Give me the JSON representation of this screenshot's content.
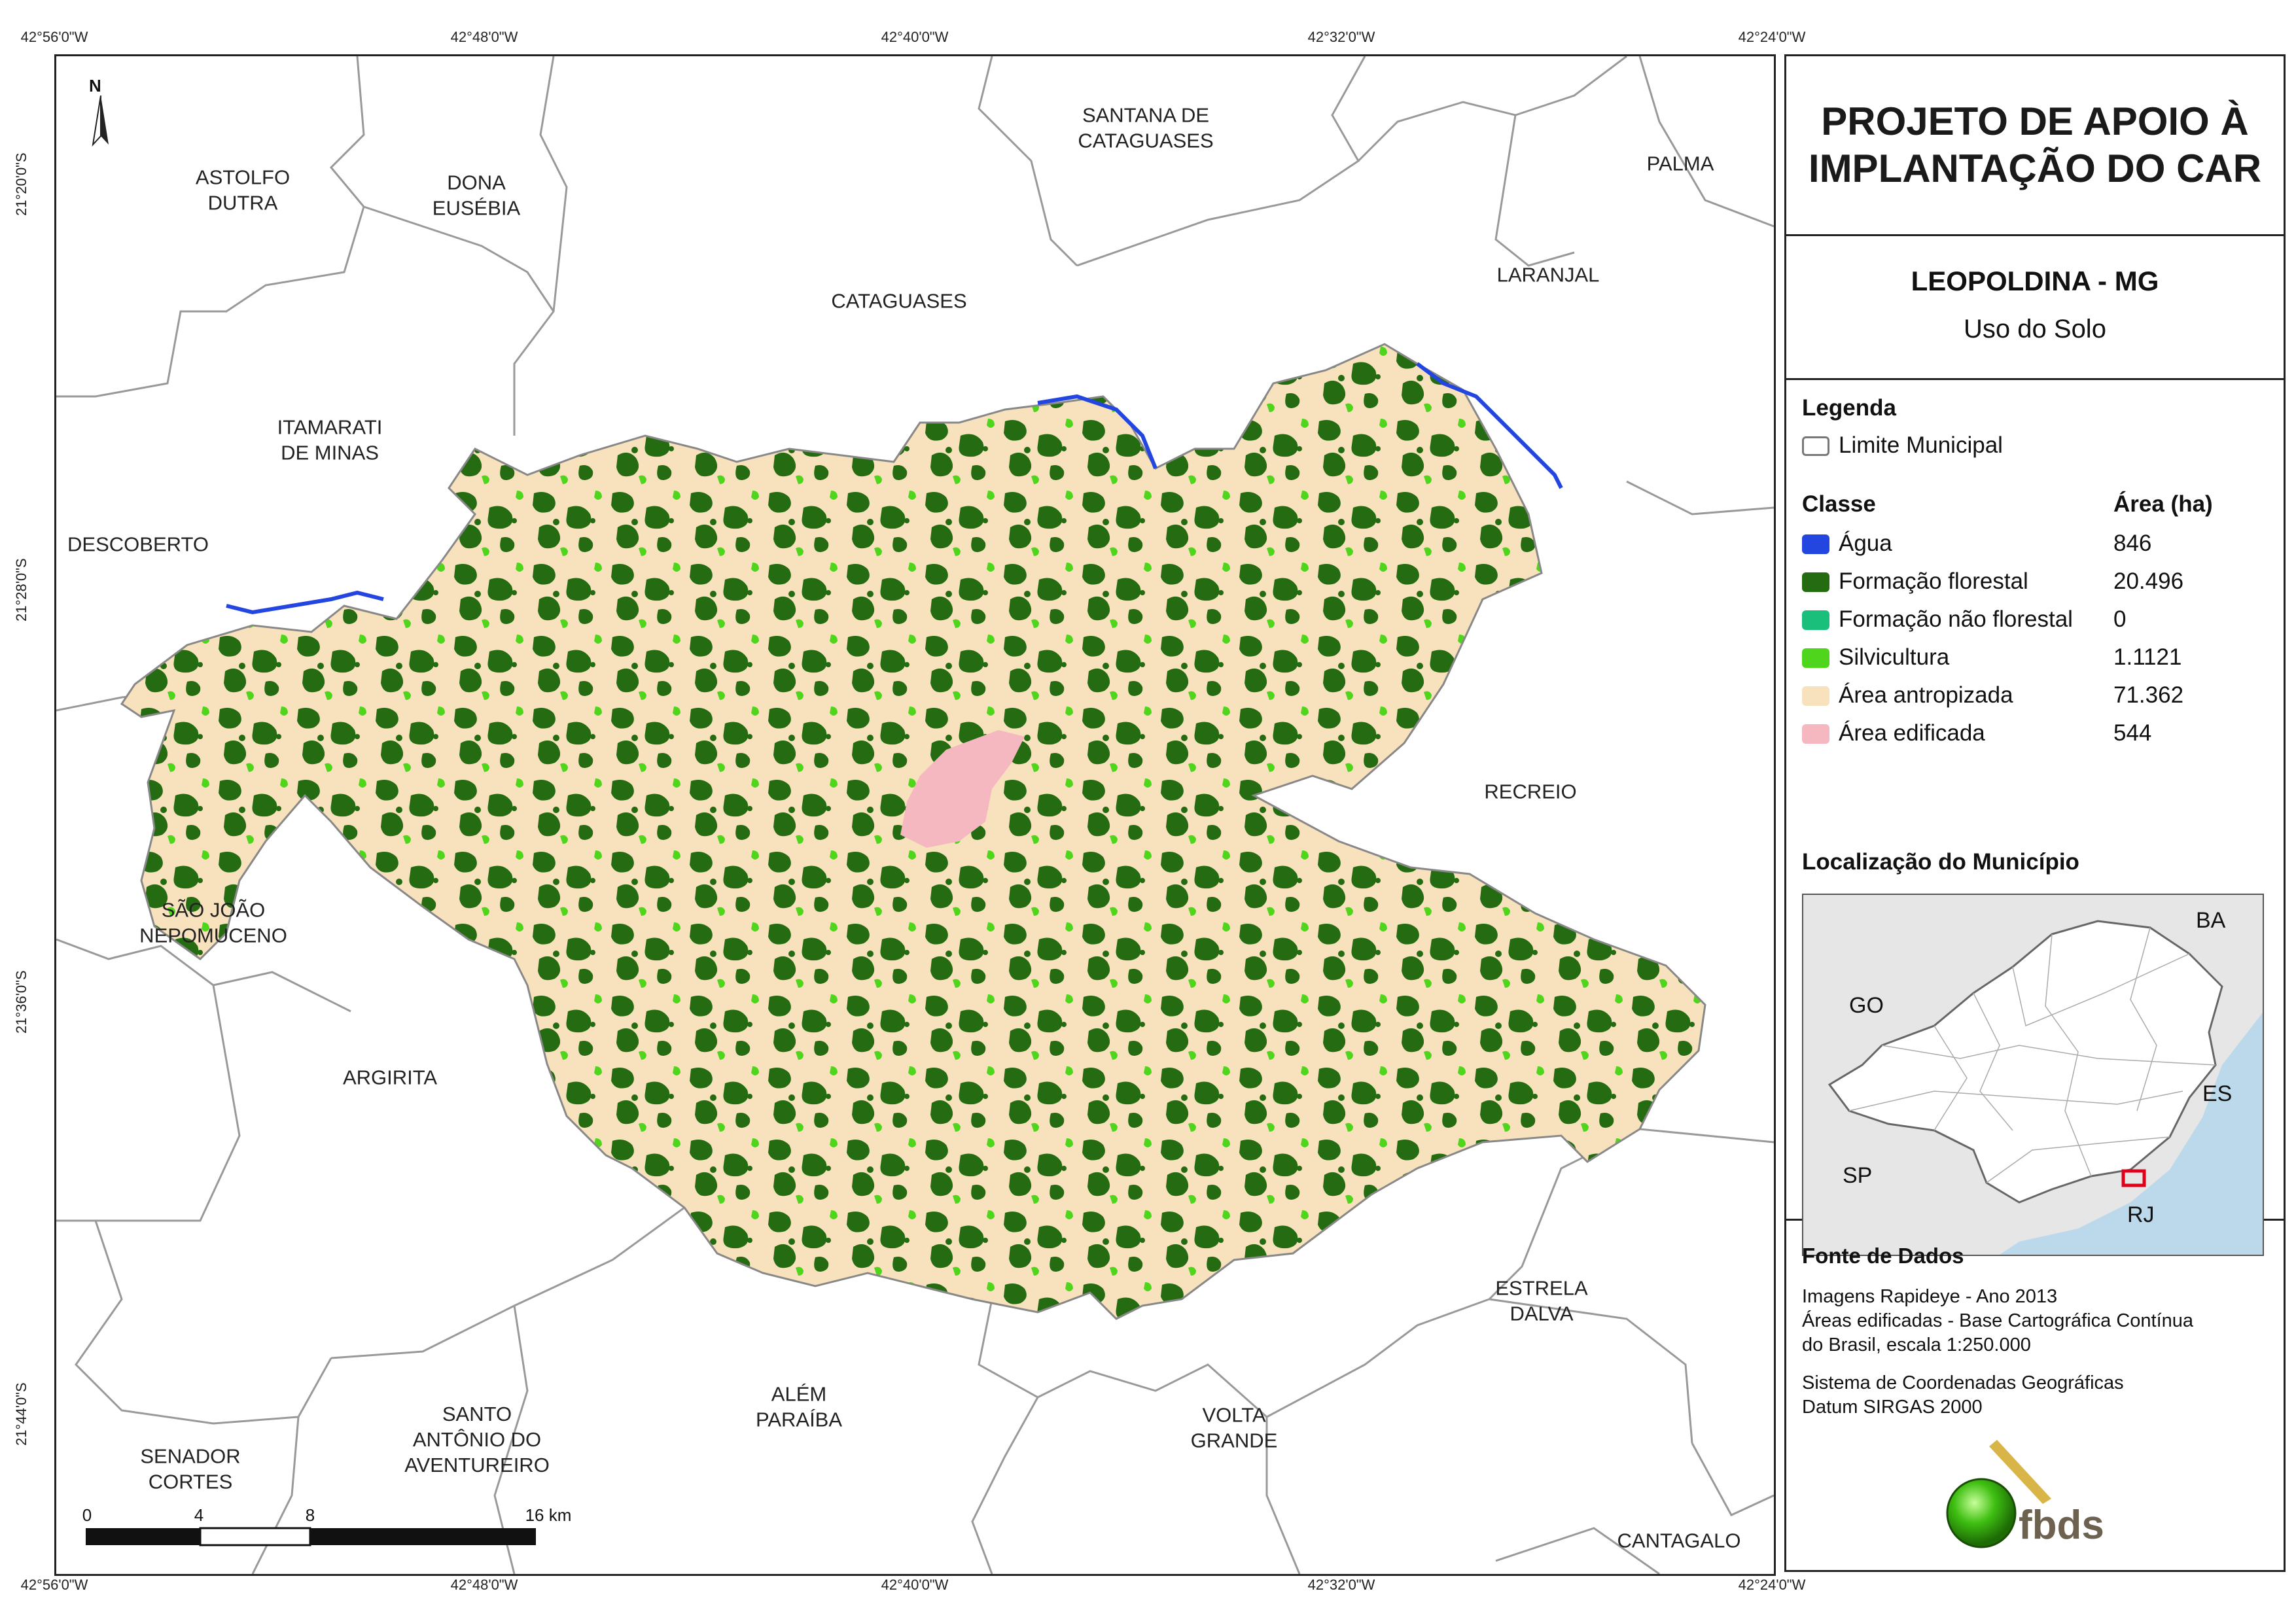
{
  "coordinates": {
    "top": [
      "42°56'0\"W",
      "42°48'0\"W",
      "42°40'0\"W",
      "42°32'0\"W",
      "42°24'0\"W"
    ],
    "bottom": [
      "42°56'0\"W",
      "42°48'0\"W",
      "42°40'0\"W",
      "42°32'0\"W",
      "42°24'0\"W"
    ],
    "left": [
      "21°20'0\"S",
      "21°28'0\"S",
      "21°36'0\"S",
      "21°44'0\"S"
    ]
  },
  "north_arrow": "N",
  "municipalities": {
    "astolfo_dutra": "ASTOLFO\nDUTRA",
    "dona_eusebia": "DONA\nEUSÉBIA",
    "santana_de_cataguases": "SANTANA DE\nCATAGUASES",
    "palma": "PALMA",
    "laranjal": "LARANJAL",
    "cataguases": "CATAGUASES",
    "itamarati_de_minas": "ITAMARATI\nDE MINAS",
    "descoberto": "DESCOBERTO",
    "recreio": "RECREIO",
    "sao_joao_nepomuceno": "SÃO JOÃO\nNEPOMUCENO",
    "argirita": "ARGIRITA",
    "estrela_dalva": "ESTRELA\nDALVA",
    "alem_paraiba": "ALÉM\nPARAÍBA",
    "volta_grande": "VOLTA\nGRANDE",
    "santo_antonio_do_aventureiro": "SANTO\nANTÔNIO DO\nAVENTUREIRO",
    "senador_cortes": "SENADOR\nCORTES",
    "cantagalo": "CANTAGALO"
  },
  "scale_bar": {
    "ticks": [
      "0",
      "4",
      "8",
      "16 km"
    ]
  },
  "panel": {
    "title": "PROJETO DE APOIO À\nIMPLANTAÇÃO DO CAR",
    "municipality": "LEOPOLDINA - MG",
    "subject": "Uso do Solo",
    "legend_title": "Legenda",
    "boundary_label": "Limite Municipal",
    "class_header": "Classe",
    "area_header": "Área (ha)",
    "classes": [
      {
        "name": "Água",
        "area": "846",
        "color": "#2446e0"
      },
      {
        "name": "Formação florestal",
        "area": "20.496",
        "color": "#246b12"
      },
      {
        "name": "Formação não florestal",
        "area": "0",
        "color": "#1bbf7c"
      },
      {
        "name": "Silvicultura",
        "area": "1.1121",
        "color": "#4fd61c"
      },
      {
        "name": "Área antropizada",
        "area": "71.362",
        "color": "#f8e2bd"
      },
      {
        "name": "Área edificada",
        "area": "544",
        "color": "#f5b8c0"
      }
    ],
    "location_title": "Localização do Município",
    "inset_labels": {
      "ba": "BA",
      "go": "GO",
      "es": "ES",
      "sp": "SP",
      "rj": "RJ"
    },
    "sources_title": "Fonte de Dados",
    "sources_lines": [
      "Imagens Rapideye - Ano 2013",
      "Áreas edificadas - Base Cartográfica Contínua",
      "do Brasil, escala 1:250.000"
    ],
    "crs_lines": [
      "Sistema de Coordenadas Geográficas",
      "Datum SIRGAS 2000"
    ],
    "logo_text": "fbds"
  }
}
